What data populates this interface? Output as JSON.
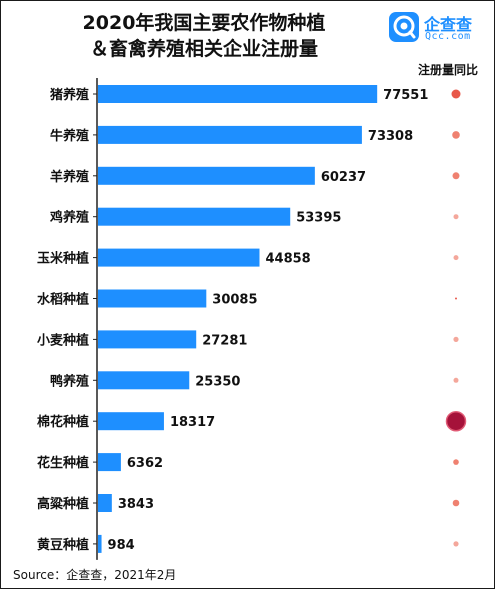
{
  "title": {
    "line1": "2020年我国主要农作物种植",
    "line2": "＆畜禽养殖相关企业注册量"
  },
  "logo": {
    "name": "企查查",
    "domain": "Qcc.com"
  },
  "yoy_header": "注册量同比",
  "source": "Source：企查查，2021年2月",
  "colors": {
    "bar": "#1e8fff",
    "axis": "#222222",
    "bubble_light": "#f4a79b",
    "bubble_mid": "#ef8170",
    "bubble_strong": "#e8584a",
    "bubble_max": "#a5123a"
  },
  "chart_data": {
    "type": "bar",
    "orientation": "horizontal",
    "title": "2020年我国主要农作物种植＆畜禽养殖相关企业注册量",
    "categories": [
      "猪养殖",
      "牛养殖",
      "羊养殖",
      "鸡养殖",
      "玉米种植",
      "水稻种植",
      "小麦种植",
      "鸭养殖",
      "棉花种植",
      "花生种植",
      "高粱种植",
      "黄豆种植"
    ],
    "values": [
      77551,
      73308,
      60237,
      53395,
      44858,
      30085,
      27281,
      25350,
      18317,
      6362,
      3843,
      984
    ],
    "xlim": [
      0,
      80000
    ],
    "yoy_bubbles": {
      "label": "注册量同比",
      "relative_size": [
        0.45,
        0.38,
        0.35,
        0.25,
        0.25,
        0.05,
        0.26,
        0.25,
        0.95,
        0.28,
        0.33,
        0.26
      ],
      "tone": [
        "strong",
        "mid",
        "mid",
        "light",
        "light",
        "strong",
        "light",
        "light",
        "max",
        "mid",
        "mid",
        "light"
      ]
    }
  }
}
